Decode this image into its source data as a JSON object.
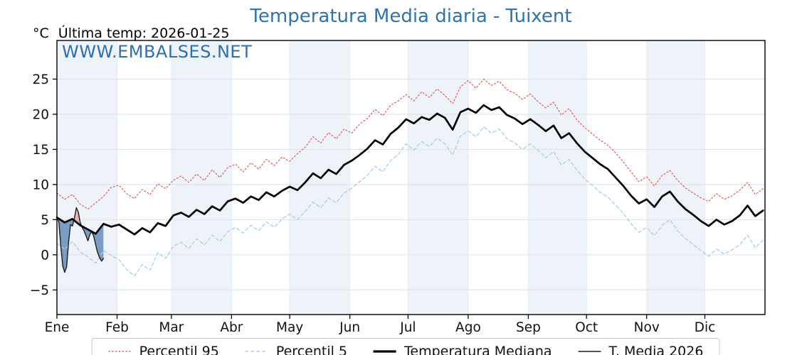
{
  "title": "Temperatura Media diaria - Tuixent",
  "title_color": "#3273ac",
  "unit_label": "°C",
  "subtitle": "Última temp: 2026-01-25",
  "watermark": {
    "text": "WWW.EMBALSES.NET",
    "color": "#2e6fad"
  },
  "colors": {
    "band": "#eef3f9",
    "grid": "#dde2e8",
    "vgrid": "#e7ebf1",
    "axis": "#000000",
    "tick_label": "#111111",
    "fill_above_median": "rgba(229,115,122,0.5)",
    "fill_below_median": "rgba(78,124,176,0.72)"
  },
  "chart_data": {
    "type": "line",
    "title": "Temperatura Media diaria - Tuixent",
    "xlabel": "",
    "ylabel": "°C",
    "x_tick_labels": [
      "Ene",
      "Feb",
      "Mar",
      "Abr",
      "May",
      "Jun",
      "Jul",
      "Ago",
      "Sep",
      "Oct",
      "Nov",
      "Dic"
    ],
    "month_start_days": [
      1,
      32,
      60,
      91,
      121,
      152,
      182,
      213,
      244,
      274,
      305,
      335
    ],
    "banded_month_indices": [
      0,
      2,
      4,
      6,
      8,
      10
    ],
    "y_ticks": [
      -5,
      0,
      5,
      10,
      15,
      20,
      25
    ],
    "ylim": [
      -8.5,
      30.5
    ],
    "xlim_days": [
      1,
      366
    ],
    "grid": true,
    "legend_position": "bottom",
    "series": [
      {
        "name": "Percentil 95",
        "color": "#e34d4d",
        "style": "dotted",
        "width": 1.1,
        "day_start": 1,
        "day_step": 4,
        "values": [
          8.8,
          7.9,
          8.6,
          7.2,
          6.5,
          7.4,
          8.3,
          9.6,
          9.9,
          8.7,
          8.0,
          9.3,
          8.6,
          10.1,
          9.4,
          10.6,
          11.2,
          10.3,
          11.5,
          10.6,
          12.1,
          11.0,
          12.4,
          12.9,
          11.8,
          13.1,
          12.2,
          13.6,
          12.7,
          13.9,
          13.3,
          14.4,
          15.3,
          16.8,
          15.9,
          17.4,
          16.5,
          17.9,
          17.3,
          18.6,
          19.4,
          20.7,
          19.8,
          21.3,
          21.9,
          22.8,
          21.9,
          23.2,
          22.4,
          23.6,
          22.7,
          21.5,
          23.9,
          24.8,
          23.7,
          25.0,
          24.1,
          24.7,
          23.5,
          23.0,
          22.1,
          22.9,
          21.8,
          20.9,
          21.7,
          19.9,
          20.8,
          19.2,
          18.1,
          17.2,
          16.3,
          15.6,
          14.5,
          13.2,
          11.8,
          10.4,
          11.1,
          9.8,
          11.3,
          12.0,
          10.6,
          9.5,
          8.8,
          8.1,
          7.6,
          8.7,
          7.9,
          8.4,
          9.2,
          10.3,
          8.6,
          9.4
        ]
      },
      {
        "name": "Percentil 5",
        "color": "#a6cfe5",
        "style": "dashed",
        "width": 1.3,
        "day_start": 1,
        "day_step": 4,
        "values": [
          1.6,
          0.8,
          1.9,
          0.4,
          -0.3,
          -1.2,
          0.6,
          -0.1,
          -0.7,
          -2.1,
          -3.0,
          -1.4,
          -2.2,
          0.3,
          -0.5,
          1.2,
          1.8,
          0.9,
          2.3,
          1.4,
          2.8,
          1.9,
          3.3,
          3.9,
          3.1,
          4.2,
          3.4,
          4.7,
          3.9,
          5.1,
          5.8,
          5.0,
          6.2,
          7.5,
          6.7,
          8.1,
          7.4,
          8.8,
          9.5,
          10.4,
          11.3,
          12.6,
          11.8,
          13.4,
          14.3,
          15.8,
          14.9,
          16.1,
          15.4,
          16.6,
          15.8,
          14.2,
          16.9,
          17.6,
          16.8,
          18.2,
          17.3,
          17.9,
          16.5,
          15.9,
          15.0,
          15.8,
          14.9,
          13.8,
          14.7,
          12.8,
          13.6,
          12.1,
          10.8,
          9.9,
          8.9,
          8.2,
          7.1,
          5.9,
          4.4,
          3.2,
          3.9,
          2.7,
          4.2,
          5.0,
          3.4,
          2.3,
          1.5,
          0.6,
          -0.2,
          0.8,
          0.1,
          0.7,
          1.4,
          2.8,
          1.0,
          2.1
        ]
      },
      {
        "name": "Temperatura Mediana",
        "color": "#000000",
        "style": "solid",
        "width": 2.7,
        "day_start": 1,
        "day_step": 4,
        "values": [
          5.3,
          4.6,
          5.1,
          4.2,
          3.6,
          3.0,
          4.4,
          4.0,
          4.3,
          3.6,
          2.9,
          3.8,
          3.2,
          4.5,
          4.1,
          5.6,
          6.0,
          5.4,
          6.4,
          5.8,
          6.9,
          6.3,
          7.6,
          8.0,
          7.4,
          8.3,
          7.8,
          8.9,
          8.3,
          9.1,
          9.7,
          9.2,
          10.3,
          11.6,
          10.9,
          12.1,
          11.5,
          12.8,
          13.4,
          14.2,
          15.1,
          16.3,
          15.7,
          17.2,
          18.1,
          19.3,
          18.7,
          19.6,
          19.2,
          20.1,
          19.5,
          17.8,
          20.3,
          20.8,
          20.2,
          21.3,
          20.6,
          21.0,
          19.9,
          19.4,
          18.6,
          19.3,
          18.5,
          17.6,
          18.4,
          16.6,
          17.3,
          15.9,
          14.7,
          13.8,
          12.9,
          12.2,
          11.0,
          9.8,
          8.4,
          7.3,
          7.9,
          6.8,
          8.3,
          9.0,
          7.6,
          6.5,
          5.7,
          4.8,
          4.1,
          5.0,
          4.3,
          4.8,
          5.6,
          7.0,
          5.5,
          6.3
        ]
      },
      {
        "name": "T. Media 2026",
        "color": "#1c1c1c",
        "style": "solid",
        "width": 1.4,
        "day_start": 1,
        "day_step": 1,
        "values": [
          5.3,
          4.7,
          1.2,
          -1.6,
          -2.5,
          -1.7,
          1.8,
          4.3,
          4.1,
          5.2,
          6.7,
          6.1,
          4.6,
          3.9,
          3.4,
          2.7,
          2.0,
          2.9,
          3.3,
          2.6,
          1.4,
          0.3,
          -0.4,
          -0.9,
          -0.5
        ]
      }
    ]
  },
  "legend": {
    "items": [
      {
        "label": "Percentil 95",
        "color": "#e34d4d",
        "style": "dotted",
        "width": 1.4
      },
      {
        "label": "Percentil 5",
        "color": "#a6cfe5",
        "style": "dashed",
        "width": 1.6
      },
      {
        "label": "Temperatura Mediana",
        "color": "#000000",
        "style": "solid",
        "width": 3.2
      },
      {
        "label": "T. Media 2026",
        "color": "#1c1c1c",
        "style": "solid",
        "width": 1.6
      }
    ]
  }
}
